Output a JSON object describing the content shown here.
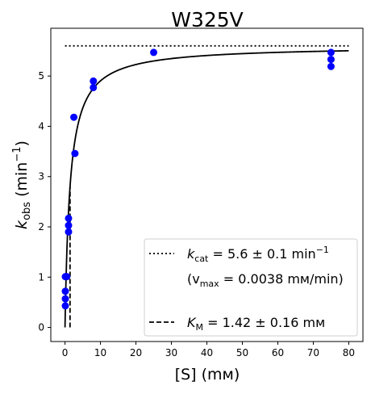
{
  "chart_data": {
    "type": "scatter",
    "title": "W325V",
    "xlabel": "[S] (mᴍ)",
    "ylabel_main": "k",
    "ylabel_sub": "obs",
    "ylabel_rest": " (min",
    "ylabel_sup": "−1",
    "ylabel_end": ")",
    "xlim": [
      -4,
      84
    ],
    "ylim": [
      -0.28,
      5.95
    ],
    "xticks": [
      0,
      10,
      20,
      30,
      40,
      50,
      60,
      70,
      80
    ],
    "yticks": [
      0,
      1,
      2,
      3,
      4,
      5
    ],
    "grid": false,
    "legend_position": "lower-right",
    "points": {
      "name": "observed",
      "color": "#0000ff",
      "x": [
        0.1,
        0.1,
        0.1,
        0.1,
        0.5,
        1.0,
        1.0,
        1.0,
        2.5,
        2.8,
        8.0,
        8.0,
        25.0,
        75.0,
        75.0,
        75.0
      ],
      "y": [
        0.43,
        0.57,
        0.72,
        1.01,
        1.01,
        1.9,
        2.03,
        2.17,
        4.18,
        3.46,
        4.77,
        4.9,
        5.47,
        5.19,
        5.33,
        5.47
      ]
    },
    "fit": {
      "model": "michaelis-menten",
      "kcat": 5.6,
      "km": 1.42,
      "x_range": [
        0,
        80
      ],
      "color": "#000000"
    },
    "kcat_line": {
      "y": 5.6,
      "x_range": [
        0,
        80
      ],
      "style": "dotted"
    },
    "km_line": {
      "x": 1.42,
      "y_range": [
        0,
        2.8
      ],
      "style": "dashed"
    },
    "legend": {
      "kcat_main": "k",
      "kcat_sub": "cat",
      "kcat_value": " = 5.6 ± 0.1 min",
      "kcat_sup": "−1",
      "vmax_open": "(v",
      "vmax_sub": "max",
      "vmax_value": " = 0.0038 mᴍ/min)",
      "km_main": "K",
      "km_sub": "M",
      "km_value": " = 1.42 ± 0.16 mᴍ"
    }
  }
}
